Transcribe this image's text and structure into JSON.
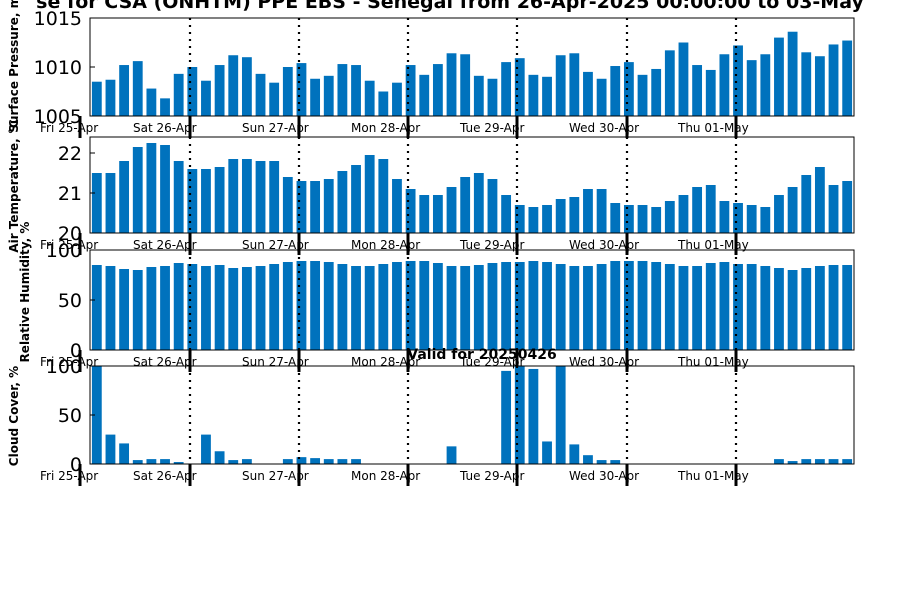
{
  "title": "se for CSA (ONHTM) PPE EBS  - Senegal from 26-Apr-2025 00:00:00 to 03-May",
  "colors": {
    "bar": "#0072bd",
    "axis": "#000000",
    "background": "#ffffff"
  },
  "date_labels": [
    "Fri 25-Apr",
    "Sat 26-Apr",
    "Sun 27-Apr",
    "Mon 28-Apr",
    "Tue 29-Apr",
    "Wed 30-Apr",
    "Thu 01-May"
  ],
  "chart_data": [
    {
      "type": "bar",
      "ylabel": "Surface Pressure, mb",
      "yticks": [
        "1005",
        "1010",
        "1015"
      ],
      "ylim": [
        1005,
        1015
      ],
      "values": [
        1008.5,
        1008.7,
        1010.2,
        1010.6,
        1007.8,
        1006.8,
        1009.3,
        1010.0,
        1008.6,
        1010.2,
        1011.2,
        1011.0,
        1009.3,
        1008.4,
        1010.0,
        1010.4,
        1008.8,
        1009.1,
        1010.3,
        1010.2,
        1008.6,
        1007.5,
        1008.4,
        1010.2,
        1009.2,
        1010.3,
        1011.4,
        1011.3,
        1009.1,
        1008.8,
        1010.5,
        1010.9,
        1009.2,
        1009.0,
        1011.2,
        1011.4,
        1009.5,
        1008.8,
        1010.1,
        1010.5,
        1009.2,
        1009.8,
        1011.7,
        1012.5,
        1010.2,
        1009.7,
        1011.3,
        1012.2,
        1010.7,
        1011.3,
        1013.0,
        1013.6,
        1011.5,
        1011.1,
        1012.3,
        1012.7
      ]
    },
    {
      "type": "bar",
      "ylabel": "Air Temperature, °C",
      "yticks": [
        "20",
        "21",
        "22"
      ],
      "ylim": [
        20,
        22.4
      ],
      "values": [
        21.5,
        21.5,
        21.8,
        22.15,
        22.25,
        22.2,
        21.8,
        21.6,
        21.6,
        21.65,
        21.85,
        21.85,
        21.8,
        21.8,
        21.4,
        21.3,
        21.3,
        21.35,
        21.55,
        21.7,
        21.95,
        21.85,
        21.35,
        21.1,
        20.95,
        20.95,
        21.15,
        21.4,
        21.5,
        21.35,
        20.95,
        20.7,
        20.65,
        20.7,
        20.85,
        20.9,
        21.1,
        21.1,
        20.75,
        20.7,
        20.7,
        20.65,
        20.8,
        20.95,
        21.15,
        21.2,
        20.8,
        20.75,
        20.7,
        20.65,
        20.95,
        21.15,
        21.45,
        21.65,
        21.2,
        21.3
      ]
    },
    {
      "type": "bar",
      "ylabel": "Relative Humidity, %",
      "yticks": [
        "0",
        "50",
        "100"
      ],
      "ylim": [
        0,
        100
      ],
      "values": [
        85,
        84,
        81,
        80,
        83,
        84,
        87,
        86,
        84,
        85,
        82,
        83,
        84,
        86,
        88,
        89,
        89,
        88,
        86,
        84,
        84,
        86,
        88,
        89,
        89,
        87,
        84,
        84,
        85,
        87,
        88,
        88,
        89,
        88,
        86,
        84,
        84,
        86,
        89,
        89,
        89,
        88,
        86,
        84,
        84,
        87,
        88,
        86,
        86,
        84,
        82,
        80,
        82,
        84,
        85,
        85
      ]
    },
    {
      "type": "bar",
      "title": "Valid for 20250426",
      "ylabel": "Cloud Cover, %",
      "yticks": [
        "0",
        "50",
        "100"
      ],
      "ylim": [
        0,
        100
      ],
      "values": [
        100,
        30,
        21,
        4,
        5,
        5,
        2,
        0,
        30,
        13,
        4,
        5,
        0,
        0,
        5,
        7,
        6,
        5,
        5,
        5,
        0,
        0,
        0,
        0,
        0,
        0,
        18,
        0,
        0,
        0,
        95,
        100,
        97,
        23,
        100,
        20,
        9,
        4,
        4,
        0,
        0,
        0,
        0,
        0,
        0,
        0,
        0,
        0,
        0,
        0,
        5,
        3,
        5,
        5,
        5,
        5
      ]
    }
  ]
}
